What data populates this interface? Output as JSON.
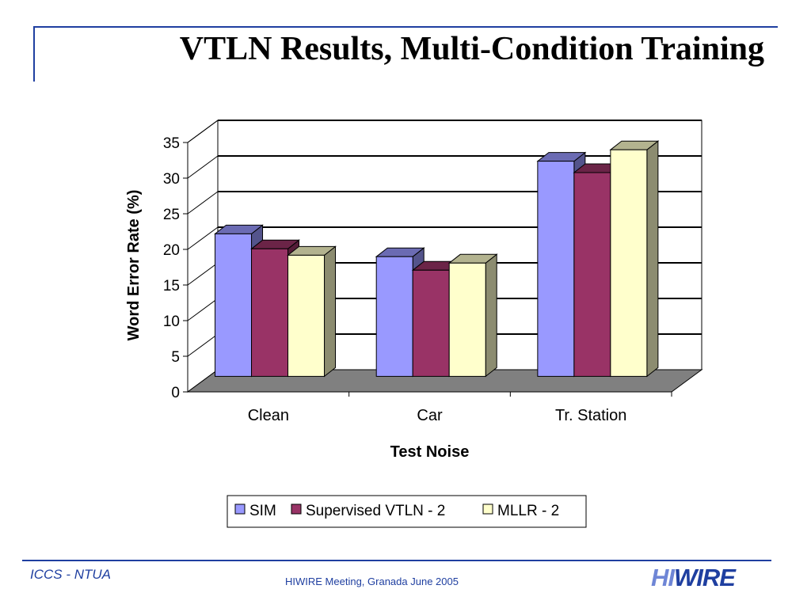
{
  "slide": {
    "title": "VTLN Results, Multi-Condition Training",
    "footer_left": "ICCS - NTUA",
    "footer_center": "HIWIRE Meeting, Granada June 2005",
    "logo_parts": [
      "HI",
      "WI",
      "RE"
    ]
  },
  "chart_data": {
    "type": "bar",
    "style": "3d-clustered",
    "categories": [
      "Clean",
      "Car",
      "Tr. Station"
    ],
    "series": [
      {
        "name": "SIM",
        "values": [
          20,
          16.8,
          30.2
        ],
        "color": "#9999ff"
      },
      {
        "name": "Supervised VTLN - 2",
        "values": [
          17.9,
          14.9,
          28.6
        ],
        "color": "#993366"
      },
      {
        "name": "MLLR - 2",
        "values": [
          17,
          15.9,
          31.8
        ],
        "color": "#ffffcc"
      }
    ],
    "xlabel": "Test Noise",
    "ylabel": "Word Error Rate (%)",
    "ylim": [
      0,
      35
    ],
    "yticks": [
      0,
      5,
      10,
      15,
      20,
      25,
      30,
      35
    ],
    "grid": true,
    "legend": "bottom",
    "floor_color": "#808080",
    "wall_color": "#ffffff"
  }
}
